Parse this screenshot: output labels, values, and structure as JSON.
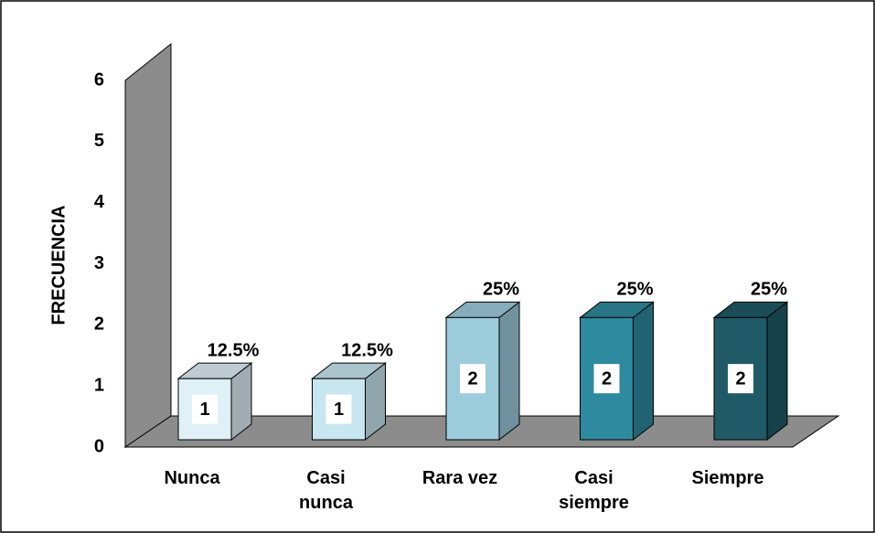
{
  "chart_data": {
    "type": "bar3d",
    "y_axis_label": "FRECUENCIA",
    "categories": [
      "Nunca",
      "Casi\nnunca",
      "Rara vez",
      "Casi\nsiempre",
      "Siempre"
    ],
    "values": [
      1,
      1,
      2,
      2,
      2
    ],
    "percentage_labels": [
      "12.5%",
      "12.5%",
      "25%",
      "25%",
      "25%"
    ],
    "colors": [
      "#dff0f7",
      "#c8e6ef",
      "#9ccbdc",
      "#2e8a9e",
      "#1f5a66"
    ],
    "ylim": [
      0,
      6
    ],
    "yticks": [
      0,
      1,
      2,
      3,
      4,
      5,
      6
    ],
    "grid": false
  }
}
